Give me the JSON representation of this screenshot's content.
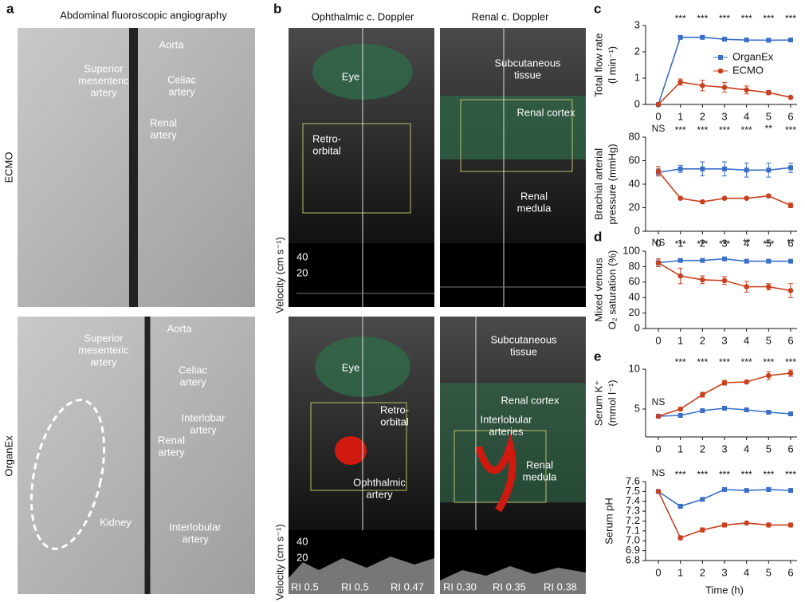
{
  "panels": [
    "a",
    "b",
    "c",
    "d",
    "e"
  ],
  "panel_a": {
    "title": "Abdominal fluoroscopic angiography",
    "rows": [
      "ECMO",
      "OrganEx"
    ],
    "ecmo_labels": [
      [
        "Aorta"
      ],
      [
        "Superior",
        "mesenteric",
        "artery"
      ],
      [
        "Celiac",
        "artery"
      ],
      [
        "Renal",
        "artery"
      ]
    ],
    "organex_labels": [
      [
        "Aorta"
      ],
      [
        "Superior",
        "mesenteric",
        "artery"
      ],
      [
        "Celiac",
        "artery"
      ],
      [
        "Interlobar",
        "artery"
      ],
      [
        "Renal",
        "artery"
      ],
      [
        "Kidney"
      ],
      [
        "Interlobular",
        "artery"
      ]
    ]
  },
  "panel_b": {
    "columns": [
      "Ophthalmic c. Doppler",
      "Renal c. Doppler"
    ],
    "top_left": [
      [
        "Eye"
      ],
      [
        "Retro-",
        "orbital"
      ]
    ],
    "top_right": [
      [
        "Subcutaneous",
        "tissue"
      ],
      [
        "Renal cortex"
      ],
      [
        "Renal",
        "medula"
      ]
    ],
    "bottom_left": [
      [
        "Eye"
      ],
      [
        "Retro-",
        "orbital"
      ],
      [
        "Ophthalmic",
        "artery"
      ]
    ],
    "bottom_right": [
      [
        "Subcutaneous",
        "tissue"
      ],
      [
        "Renal cortex"
      ],
      [
        "Interlobular",
        "arteries"
      ],
      [
        "Renal",
        "medula"
      ]
    ],
    "velocity_label": "Velocity (cm s⁻¹)",
    "velocity_ticks": [
      "40",
      "20"
    ],
    "ri_left": [
      "RI 0.5",
      "RI 0.5",
      "RI 0.47"
    ],
    "ri_right": [
      "RI 0.30",
      "RI 0.35",
      "RI 0.38"
    ]
  },
  "chart_data": [
    {
      "type": "line",
      "ylabel": [
        "Total flow rate",
        "(l min⁻¹)"
      ],
      "x": [
        0,
        1,
        2,
        3,
        4,
        5,
        6
      ],
      "xlim": [
        0,
        6
      ],
      "xticks": [
        0,
        1,
        2,
        3,
        4,
        5,
        6
      ],
      "ylim": [
        0,
        3
      ],
      "yticks": [
        0,
        1,
        2,
        3
      ],
      "legend": "upper right",
      "significance": [
        "",
        "***",
        "***",
        "***",
        "***",
        "***",
        "***"
      ],
      "series": [
        {
          "name": "OrganEx",
          "color": "#3b6fc6",
          "values": [
            0,
            2.55,
            2.55,
            2.48,
            2.45,
            2.44,
            2.45
          ],
          "errors": [
            0,
            0.04,
            0.04,
            0.05,
            0.05,
            0.05,
            0.05
          ]
        },
        {
          "name": "ECMO",
          "color": "#c8401e",
          "values": [
            0,
            0.85,
            0.72,
            0.65,
            0.55,
            0.45,
            0.27
          ],
          "errors": [
            0,
            0.12,
            0.2,
            0.18,
            0.15,
            0.08,
            0.03
          ]
        }
      ]
    },
    {
      "type": "line",
      "ylabel": [
        "Brachial arterial",
        "pressure (mmHg)"
      ],
      "x": [
        0,
        1,
        2,
        3,
        4,
        5,
        6
      ],
      "xlim": [
        0,
        6
      ],
      "xticks": [
        0,
        1,
        2,
        3,
        4,
        5,
        6
      ],
      "ylim": [
        0,
        80
      ],
      "yticks": [
        0,
        20,
        40,
        60,
        80
      ],
      "significance": [
        "NS",
        "***",
        "***",
        "***",
        "***",
        "**",
        "***"
      ],
      "series": [
        {
          "name": "OrganEx",
          "color": "#3b6fc6",
          "values": [
            50,
            53,
            53,
            53,
            52,
            52,
            54
          ],
          "errors": [
            3,
            3,
            6,
            6,
            6,
            6,
            4
          ]
        },
        {
          "name": "ECMO",
          "color": "#c8401e",
          "values": [
            51,
            28,
            25,
            28,
            28,
            30,
            22
          ],
          "errors": [
            4,
            1,
            1,
            1,
            1,
            1,
            2
          ]
        }
      ]
    },
    {
      "type": "line",
      "ylabel": [
        "Mixed venous",
        "O₂ saturation (%)"
      ],
      "x": [
        0,
        1,
        2,
        3,
        4,
        5,
        6
      ],
      "xlim": [
        0,
        6
      ],
      "xticks": [
        0,
        1,
        2,
        3,
        4,
        5,
        6
      ],
      "ylim": [
        0,
        100
      ],
      "yticks": [
        0,
        20,
        40,
        60,
        80,
        100
      ],
      "significance": [
        "NS",
        "***",
        "***",
        "***",
        "**",
        "***",
        "**"
      ],
      "series": [
        {
          "name": "OrganEx",
          "color": "#3b6fc6",
          "values": [
            85,
            88,
            88,
            90,
            87,
            87,
            87
          ],
          "errors": [
            5,
            2,
            2,
            2,
            2,
            2,
            2
          ]
        },
        {
          "name": "ECMO",
          "color": "#c8401e",
          "values": [
            85,
            68,
            63,
            62,
            54,
            54,
            49
          ],
          "errors": [
            5,
            10,
            5,
            5,
            7,
            4,
            9
          ]
        }
      ]
    },
    {
      "type": "line",
      "ylabel": [
        "Serum K⁺",
        "(mmol l⁻¹)"
      ],
      "x": [
        0,
        1,
        2,
        3,
        4,
        5,
        6
      ],
      "xlim": [
        0,
        6
      ],
      "xticks": [
        0,
        1,
        2,
        3,
        4,
        5,
        6
      ],
      "ylim": [
        1.5,
        10
      ],
      "yticks": [
        5,
        10
      ],
      "significance": [
        "NS",
        "***",
        "***",
        "***",
        "***",
        "***",
        "***"
      ],
      "series": [
        {
          "name": "OrganEx",
          "color": "#3b6fc6",
          "values": [
            4.1,
            4.2,
            4.8,
            5.1,
            4.9,
            4.6,
            4.4
          ],
          "errors": [
            0.1,
            0.1,
            0.1,
            0.1,
            0.1,
            0.1,
            0.2
          ]
        },
        {
          "name": "ECMO",
          "color": "#c8401e",
          "values": [
            4.1,
            5.0,
            6.8,
            8.3,
            8.4,
            9.2,
            9.5
          ],
          "errors": [
            0.1,
            0.1,
            0.3,
            0.3,
            0.2,
            0.5,
            0.4
          ]
        }
      ]
    },
    {
      "type": "line",
      "ylabel": [
        "Serum pH"
      ],
      "xlabel": "Time (h)",
      "x": [
        0,
        1,
        2,
        3,
        4,
        5,
        6
      ],
      "xlim": [
        0,
        6
      ],
      "xticks": [
        0,
        1,
        2,
        3,
        4,
        5,
        6
      ],
      "ylim": [
        6.8,
        7.6
      ],
      "yticks": [
        6.8,
        6.9,
        {
          "value": 7,
          "label": "7.0"
        },
        7.1,
        7.2,
        7.3,
        7.4,
        7.5,
        7.6
      ],
      "significance": [
        "NS",
        "***",
        "***",
        "***",
        "***",
        "***",
        "***"
      ],
      "series": [
        {
          "name": "OrganEx",
          "color": "#3b6fc6",
          "values": [
            7.5,
            7.35,
            7.42,
            7.52,
            7.51,
            7.52,
            7.51
          ],
          "errors": [
            0.01,
            0.01,
            0.01,
            0.01,
            0.01,
            0.02,
            0.02
          ]
        },
        {
          "name": "ECMO",
          "color": "#c8401e",
          "values": [
            7.5,
            7.03,
            7.11,
            7.16,
            7.18,
            7.16,
            7.16
          ],
          "errors": [
            0.01,
            0.02,
            0.02,
            0.02,
            0.01,
            0.02,
            0.02
          ]
        }
      ]
    }
  ]
}
